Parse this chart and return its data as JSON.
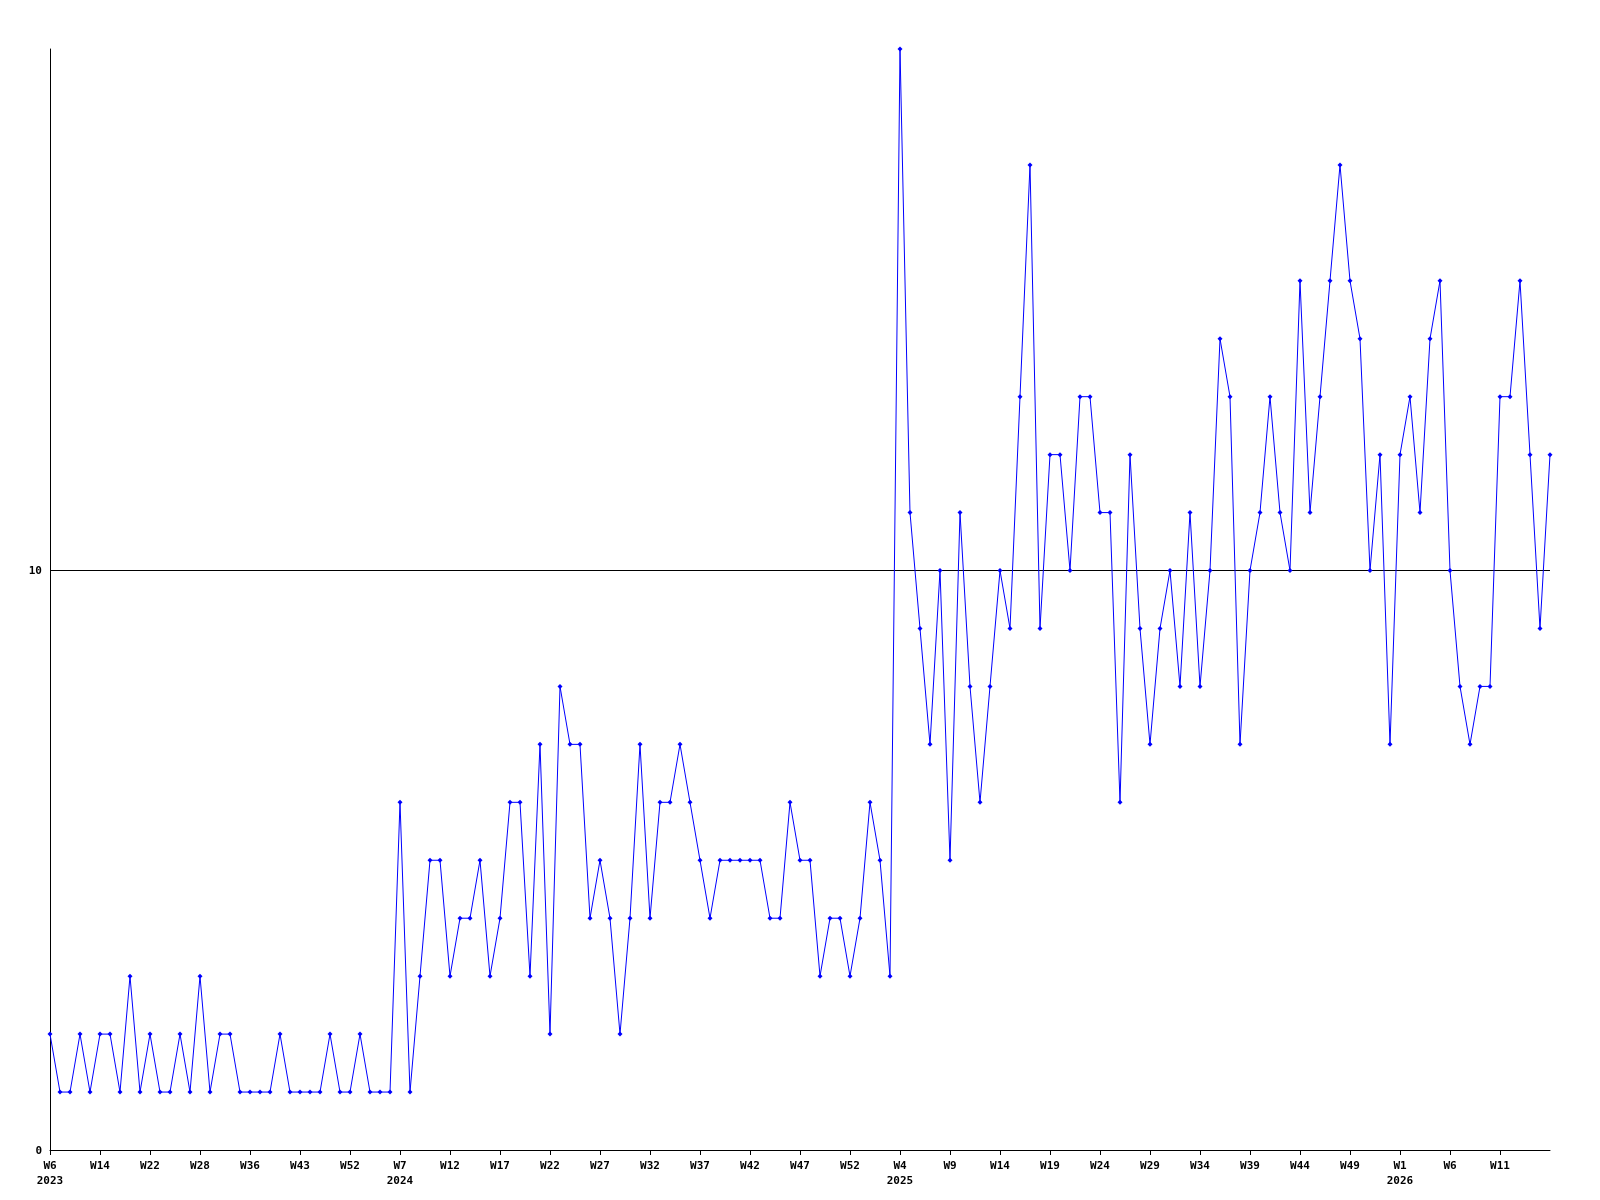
{
  "chart_data": {
    "type": "line",
    "categories": [
      "W6\n2023",
      null,
      null,
      null,
      null,
      "W14",
      null,
      null,
      null,
      null,
      "W22",
      null,
      null,
      null,
      null,
      "W28",
      null,
      null,
      null,
      null,
      "W36",
      null,
      null,
      null,
      null,
      "W43",
      null,
      null,
      null,
      null,
      "W52",
      null,
      null,
      null,
      null,
      "W7\n2024",
      null,
      null,
      null,
      null,
      "W12",
      null,
      null,
      null,
      null,
      "W17",
      null,
      null,
      null,
      null,
      "W22",
      null,
      null,
      null,
      null,
      "W27",
      null,
      null,
      null,
      null,
      "W32",
      null,
      null,
      null,
      null,
      "W37",
      null,
      null,
      null,
      null,
      "W42",
      null,
      null,
      null,
      null,
      "W47",
      null,
      null,
      null,
      null,
      "W52",
      null,
      null,
      null,
      null,
      "W4\n2025",
      null,
      null,
      null,
      null,
      "W9",
      null,
      null,
      null,
      null,
      "W14",
      null,
      null,
      null,
      null,
      "W19",
      null,
      null,
      null,
      null,
      "W24",
      null,
      null,
      null,
      null,
      "W29",
      null,
      null,
      null,
      null,
      "W34",
      null,
      null,
      null,
      null,
      "W39",
      null,
      null,
      null,
      null,
      "W44",
      null,
      null,
      null,
      null,
      "W49",
      null,
      null,
      null,
      null,
      "W1\n2026",
      null,
      null,
      null,
      null,
      "W6",
      null,
      null,
      null,
      null,
      "W11",
      null,
      null,
      null,
      null,
      null
    ],
    "series": [
      {
        "color": "#0000ff",
        "values": [
          2,
          1,
          1,
          2,
          1,
          2,
          2,
          1,
          3,
          1,
          2,
          1,
          1,
          2,
          1,
          3,
          1,
          2,
          2,
          1,
          1,
          1,
          1,
          2,
          1,
          1,
          1,
          1,
          2,
          1,
          1,
          2,
          1,
          1,
          1,
          6,
          1,
          3,
          5,
          5,
          3,
          4,
          4,
          5,
          3,
          4,
          6,
          6,
          3,
          7,
          2,
          8,
          7,
          7,
          4,
          5,
          4,
          2,
          4,
          7,
          4,
          6,
          6,
          7,
          6,
          5,
          4,
          5,
          5,
          5,
          5,
          5,
          4,
          4,
          6,
          5,
          5,
          3,
          4,
          4,
          3,
          4,
          6,
          5,
          3,
          19,
          11,
          9,
          7,
          10,
          5,
          11,
          8,
          6,
          8,
          10,
          9,
          13,
          17,
          9,
          12,
          12,
          10,
          13,
          13,
          11,
          11,
          6,
          12,
          9,
          7,
          9,
          10,
          8,
          11,
          8,
          10,
          14,
          13,
          7,
          10,
          11,
          13,
          11,
          10,
          15,
          11,
          13,
          15,
          17,
          15,
          14,
          10,
          12,
          7,
          12,
          13,
          11,
          14,
          15,
          10,
          8,
          7,
          8,
          8,
          13,
          13,
          15,
          12,
          9,
          12
        ]
      }
    ],
    "ylim": [
      0,
      19
    ],
    "yticks": [
      0,
      10
    ],
    "grid": "y",
    "marker": "diamond",
    "line_style": "solid"
  }
}
